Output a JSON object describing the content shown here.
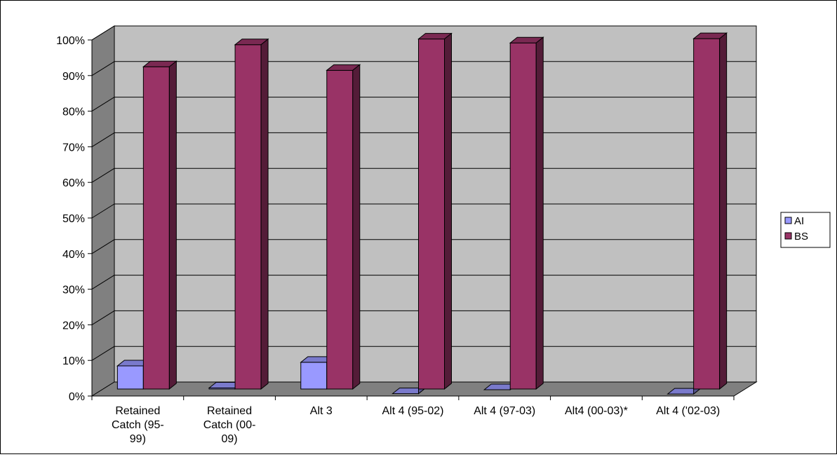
{
  "chart_data": {
    "type": "bar",
    "title": "",
    "xlabel": "",
    "ylabel": "",
    "ylim": [
      0,
      100
    ],
    "y_ticks": [
      "0%",
      "10%",
      "20%",
      "30%",
      "40%",
      "50%",
      "60%",
      "70%",
      "80%",
      "90%",
      "100%"
    ],
    "categories": [
      [
        "Retained",
        "Catch (95-",
        "99)"
      ],
      [
        "Retained",
        "Catch (00-",
        "09)"
      ],
      [
        "Alt 3"
      ],
      [
        "Alt 4 (95-02)"
      ],
      [
        "Alt 4 (97-03)"
      ],
      [
        "Alt4 (00-03)*"
      ],
      [
        "Alt 4 ('02-03)"
      ]
    ],
    "series": [
      {
        "name": "AI",
        "values": [
          8,
          1.8,
          9,
          0.2,
          1.3,
          0,
          0.1
        ],
        "color": "#9999ff"
      },
      {
        "name": "BS",
        "values": [
          92,
          98.2,
          91,
          99.8,
          98.7,
          0,
          99.9
        ],
        "color": "#993366"
      }
    ],
    "grid": true,
    "legend_position": "right",
    "style": "3d-column"
  }
}
